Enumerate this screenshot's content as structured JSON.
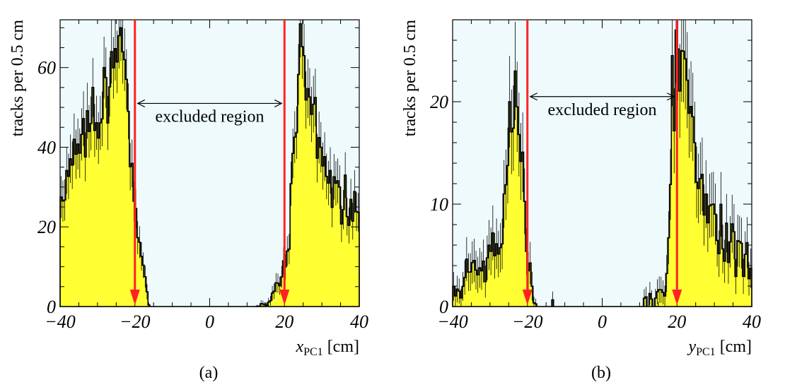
{
  "figure": {
    "bg": "#eefafc",
    "fill": "#ffff33",
    "marker": "#ff2222"
  },
  "chart_data": [
    {
      "type": "bar",
      "caption": "(a)",
      "xlabel_main": "x",
      "xlabel_sub": "PC1",
      "xlabel_unit": "[cm]",
      "ylabel": "tracks per 0.5 cm",
      "xlim": [
        -40,
        40
      ],
      "ylim": [
        0,
        72
      ],
      "xticks": [
        "−40",
        "−20",
        "0",
        "20",
        "40"
      ],
      "xtick_values": [
        -40,
        -20,
        0,
        20,
        40
      ],
      "yticks": [
        "0",
        "20",
        "40",
        "60"
      ],
      "ytick_values": [
        0,
        20,
        40,
        60
      ],
      "annotation": "excluded region",
      "cut_lines": [
        -20,
        20
      ],
      "annotation_y": 51,
      "bin_width": 0.5,
      "envelope": [
        [
          -40,
          30
        ],
        [
          -38,
          32
        ],
        [
          -36,
          36
        ],
        [
          -34,
          40
        ],
        [
          -32,
          45
        ],
        [
          -30,
          48
        ],
        [
          -28,
          52
        ],
        [
          -26,
          57
        ],
        [
          -25,
          62
        ],
        [
          -24,
          65
        ],
        [
          -23,
          60
        ],
        [
          -22,
          48
        ],
        [
          -21,
          38
        ],
        [
          -20,
          27
        ],
        [
          -19,
          18
        ],
        [
          -18,
          10
        ],
        [
          -17,
          5
        ],
        [
          -16.5,
          1
        ],
        [
          -16,
          0
        ],
        [
          12,
          0
        ],
        [
          14,
          1
        ],
        [
          16,
          1
        ],
        [
          17,
          3
        ],
        [
          18,
          5
        ],
        [
          19,
          7
        ],
        [
          20,
          9
        ],
        [
          21,
          15
        ],
        [
          22,
          30
        ],
        [
          23,
          48
        ],
        [
          24,
          58
        ],
        [
          25,
          60
        ],
        [
          26,
          56
        ],
        [
          28,
          47
        ],
        [
          30,
          38
        ],
        [
          32,
          31
        ],
        [
          34,
          27
        ],
        [
          36,
          24
        ],
        [
          38,
          26
        ],
        [
          39,
          27
        ],
        [
          40,
          20
        ]
      ],
      "spike_points": [
        [
          -36,
          42
        ],
        [
          -31,
          55
        ],
        [
          -28,
          60
        ],
        [
          -26,
          64
        ],
        [
          -24,
          68
        ],
        [
          -23.5,
          70
        ],
        [
          -22.5,
          62
        ],
        [
          24.5,
          71
        ],
        [
          25.5,
          63
        ],
        [
          35,
          30
        ],
        [
          36.5,
          33
        ]
      ]
    },
    {
      "type": "bar",
      "caption": "(b)",
      "xlabel_main": "y",
      "xlabel_sub": "PC1",
      "xlabel_unit": "[cm]",
      "ylabel": "tracks per 0.5 cm",
      "xlim": [
        -40,
        40
      ],
      "ylim": [
        0,
        28
      ],
      "xticks": [
        "−40",
        "−20",
        "0",
        "20",
        "40"
      ],
      "xtick_values": [
        -40,
        -20,
        0,
        20,
        40
      ],
      "yticks": [
        "0",
        "10",
        "20"
      ],
      "ytick_values": [
        0,
        10,
        20
      ],
      "annotation": "excluded region",
      "cut_lines": [
        -20,
        20
      ],
      "annotation_y": 20.5,
      "bin_width": 0.5,
      "envelope": [
        [
          -40,
          1.5
        ],
        [
          -38,
          2.5
        ],
        [
          -36,
          3
        ],
        [
          -34,
          3.5
        ],
        [
          -32,
          4
        ],
        [
          -30,
          4.5
        ],
        [
          -28,
          5.5
        ],
        [
          -27,
          7
        ],
        [
          -26,
          9
        ],
        [
          -25,
          13
        ],
        [
          -24,
          17
        ],
        [
          -23,
          19
        ],
        [
          -22,
          16
        ],
        [
          -21,
          11
        ],
        [
          -20,
          6
        ],
        [
          -19,
          2
        ],
        [
          -18,
          1
        ],
        [
          -17.5,
          0
        ],
        [
          -14,
          0
        ],
        [
          -13,
          0.5
        ],
        [
          -12.5,
          0
        ],
        [
          10,
          0
        ],
        [
          12,
          0.5
        ],
        [
          14,
          0.5
        ],
        [
          16,
          1
        ],
        [
          17,
          3
        ],
        [
          18,
          8
        ],
        [
          19,
          15
        ],
        [
          19.5,
          22
        ],
        [
          20,
          26
        ],
        [
          21,
          24
        ],
        [
          22,
          20
        ],
        [
          24,
          15
        ],
        [
          26,
          12
        ],
        [
          28,
          10
        ],
        [
          30,
          8
        ],
        [
          32,
          7
        ],
        [
          34,
          6
        ],
        [
          36,
          5
        ],
        [
          38,
          4.5
        ],
        [
          40,
          4
        ]
      ],
      "spike_points": [
        [
          -34,
          4.5
        ],
        [
          -30,
          6
        ],
        [
          -26,
          11
        ],
        [
          -24.5,
          20
        ],
        [
          -23,
          23
        ],
        [
          -22.5,
          19.5
        ],
        [
          19,
          24.5
        ],
        [
          19.8,
          27
        ],
        [
          21.5,
          25
        ],
        [
          25,
          16
        ],
        [
          30,
          10
        ]
      ]
    }
  ]
}
